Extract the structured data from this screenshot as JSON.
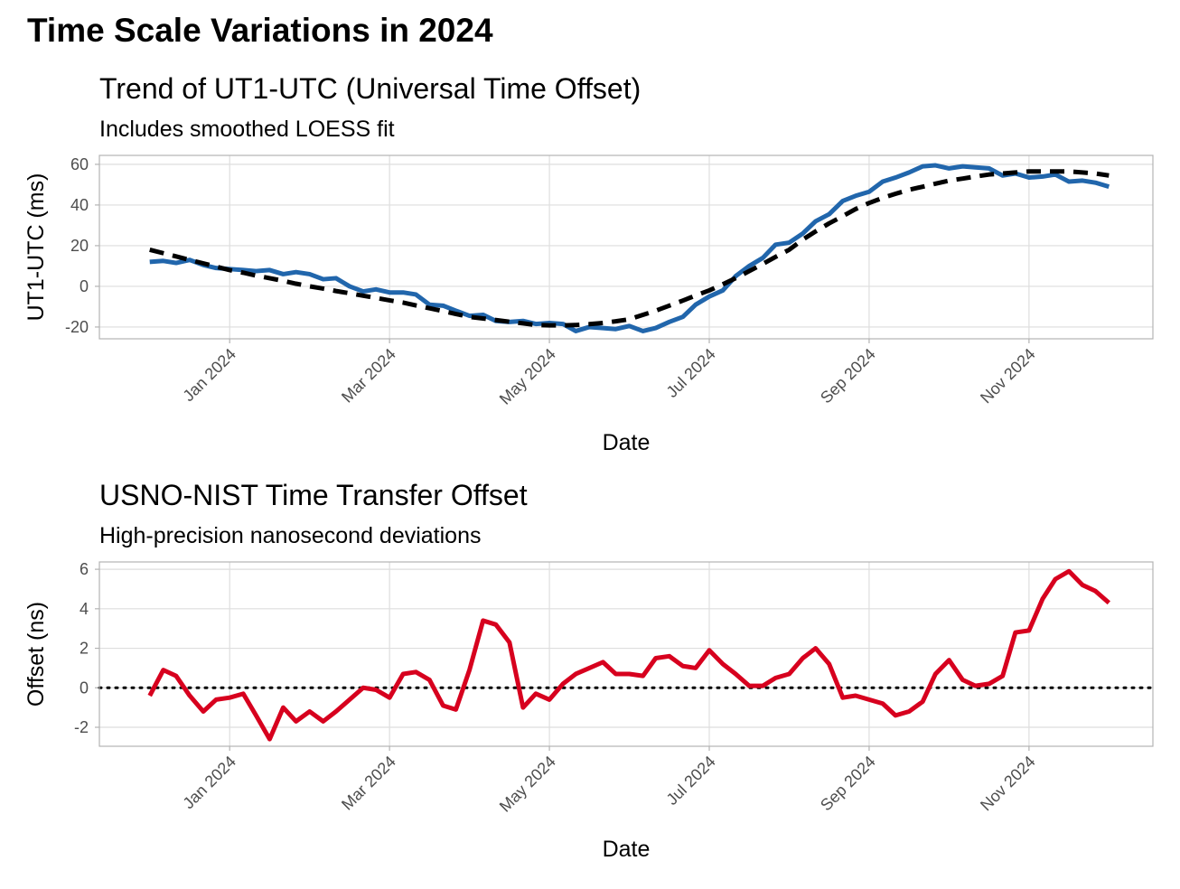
{
  "title": "Time Scale Variations in 2024",
  "chart_data": [
    {
      "type": "line",
      "title": "Trend of UT1-UTC (Universal Time Offset)",
      "subtitle": "Includes smoothed LOESS fit",
      "x_label": "Date",
      "y_label": "UT1-UTC (ms)",
      "x": [
        0,
        0.17,
        0.33,
        0.5,
        0.67,
        0.83,
        1,
        1.17,
        1.33,
        1.5,
        1.67,
        1.83,
        2,
        2.17,
        2.33,
        2.5,
        2.67,
        2.83,
        3,
        3.17,
        3.33,
        3.5,
        3.67,
        3.83,
        4,
        4.17,
        4.33,
        4.5,
        4.67,
        4.83,
        5,
        5.17,
        5.33,
        5.5,
        5.67,
        5.83,
        6,
        6.17,
        6.33,
        6.5,
        6.67,
        6.83,
        7,
        7.17,
        7.33,
        7.5,
        7.67,
        7.83,
        8,
        8.17,
        8.33,
        8.5,
        8.67,
        8.83,
        9,
        9.17,
        9.33,
        9.5,
        9.67,
        9.83,
        10,
        10.17,
        10.33,
        10.5,
        10.67,
        10.83,
        11,
        11.17,
        11.33,
        11.5,
        11.67,
        11.83,
        12
      ],
      "series": [
        {
          "color": "#2166ac",
          "style": "solid",
          "values": [
            12,
            12.5,
            11.5,
            13,
            10.5,
            9,
            8.5,
            8,
            7.5,
            8,
            6,
            7,
            6,
            3.5,
            4,
            0,
            -2.5,
            -1.5,
            -3,
            -3,
            -4,
            -9,
            -9.5,
            -12,
            -14.5,
            -14,
            -17,
            -17.5,
            -17,
            -18.5,
            -18,
            -18.5,
            -22,
            -20,
            -20.5,
            -21,
            -19.5,
            -22,
            -20.5,
            -17.5,
            -15,
            -9,
            -5,
            -2,
            5,
            10,
            14,
            20.5,
            21.5,
            26,
            32,
            35.5,
            42,
            44.5,
            46.5,
            51.5,
            53.5,
            56,
            59,
            59.5,
            58,
            59,
            58.5,
            58,
            54.5,
            55.5,
            53.5,
            54,
            55,
            51.5,
            52,
            51,
            49
          ]
        },
        {
          "color": "#000000",
          "style": "dashed",
          "values": [
            18,
            16.3,
            14.7,
            13,
            11.3,
            9.7,
            8,
            6.7,
            5.3,
            4,
            2.7,
            1.3,
            0,
            -1.1,
            -2.3,
            -3.4,
            -4.6,
            -5.7,
            -6.9,
            -8,
            -9.4,
            -10.8,
            -12.2,
            -13.6,
            -15,
            -15.8,
            -16.6,
            -17.4,
            -18.2,
            -19,
            -19.2,
            -19.2,
            -19,
            -18.6,
            -18,
            -17.2,
            -16.2,
            -14,
            -12,
            -9.5,
            -7,
            -4.5,
            -2,
            1,
            4,
            7.5,
            11,
            14.5,
            18,
            23,
            27,
            31,
            34.5,
            38,
            41,
            43.5,
            45.5,
            47.5,
            49,
            50.5,
            52,
            53,
            54,
            55,
            55.5,
            56,
            56.5,
            56.5,
            56.5,
            56.5,
            56,
            55.5,
            54.5
          ]
        }
      ],
      "xlim": [
        -0.63,
        12.55
      ],
      "xticks": [
        {
          "value": 1,
          "label": "Jan 2024"
        },
        {
          "value": 3,
          "label": "Mar 2024"
        },
        {
          "value": 5,
          "label": "May 2024"
        },
        {
          "value": 7,
          "label": "Jul 2024"
        },
        {
          "value": 9,
          "label": "Sep 2024"
        },
        {
          "value": 11,
          "label": "Nov 2024"
        }
      ],
      "ylim": [
        -25.8,
        64.4
      ],
      "yticks": [
        -20,
        0,
        20,
        40,
        60
      ],
      "grid": true
    },
    {
      "type": "line",
      "title": "USNO-NIST Time Transfer Offset",
      "subtitle": "High-precision nanosecond deviations",
      "x_label": "Date",
      "y_label": "Offset (ns)",
      "x": [
        0,
        0.17,
        0.33,
        0.5,
        0.67,
        0.83,
        1,
        1.17,
        1.33,
        1.5,
        1.67,
        1.83,
        2,
        2.17,
        2.33,
        2.5,
        2.67,
        2.83,
        3,
        3.17,
        3.33,
        3.5,
        3.67,
        3.83,
        4,
        4.17,
        4.33,
        4.5,
        4.67,
        4.83,
        5,
        5.17,
        5.33,
        5.5,
        5.67,
        5.83,
        6,
        6.17,
        6.33,
        6.5,
        6.67,
        6.83,
        7,
        7.17,
        7.33,
        7.5,
        7.67,
        7.83,
        8,
        8.17,
        8.33,
        8.5,
        8.67,
        8.83,
        9,
        9.17,
        9.33,
        9.5,
        9.67,
        9.83,
        10,
        10.17,
        10.33,
        10.5,
        10.67,
        10.83,
        11,
        11.17,
        11.33,
        11.5,
        11.67,
        11.83,
        12
      ],
      "series": [
        {
          "color": "#d7001e",
          "style": "solid",
          "values": [
            -0.4,
            0.9,
            0.6,
            -0.4,
            -1.2,
            -0.6,
            -0.5,
            -0.3,
            -1.4,
            -2.6,
            -1.0,
            -1.7,
            -1.2,
            -1.7,
            -1.2,
            -0.6,
            0.0,
            -0.1,
            -0.5,
            0.7,
            0.8,
            0.4,
            -0.9,
            -1.1,
            0.9,
            3.4,
            3.2,
            2.3,
            -1.0,
            -0.3,
            -0.6,
            0.2,
            0.7,
            1.0,
            1.3,
            0.7,
            0.7,
            0.6,
            1.5,
            1.6,
            1.1,
            1.0,
            1.9,
            1.2,
            0.7,
            0.1,
            0.1,
            0.5,
            0.7,
            1.5,
            2.0,
            1.2,
            -0.5,
            -0.4,
            -0.6,
            -0.8,
            -1.4,
            -1.2,
            -0.7,
            0.7,
            1.4,
            0.4,
            0.1,
            0.2,
            0.6,
            2.8,
            2.9,
            4.5,
            5.5,
            5.9,
            5.2,
            4.9,
            4.3
          ]
        }
      ],
      "hline": 0,
      "xlim": [
        -0.63,
        12.55
      ],
      "xticks": [
        {
          "value": 1,
          "label": "Jan 2024"
        },
        {
          "value": 3,
          "label": "Mar 2024"
        },
        {
          "value": 5,
          "label": "May 2024"
        },
        {
          "value": 7,
          "label": "Jul 2024"
        },
        {
          "value": 9,
          "label": "Sep 2024"
        },
        {
          "value": 11,
          "label": "Nov 2024"
        }
      ],
      "ylim": [
        -2.96,
        6.37
      ],
      "yticks": [
        -2,
        0,
        2,
        4,
        6
      ],
      "grid": true
    }
  ]
}
